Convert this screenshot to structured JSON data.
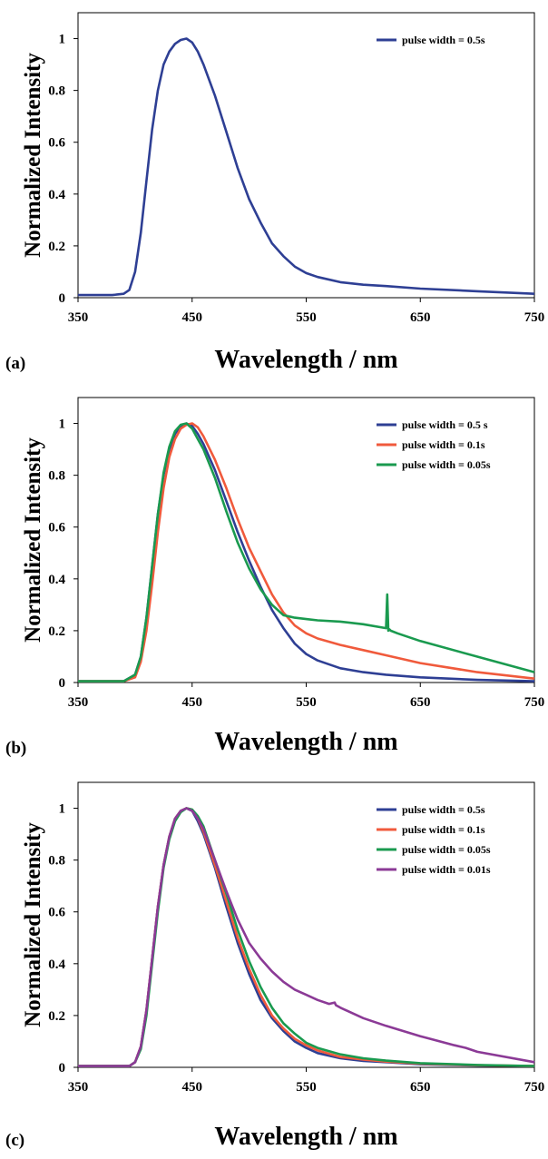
{
  "chart_data": [
    {
      "type": "line",
      "panel_label": "(a)",
      "xlabel": "Wavelength / nm",
      "ylabel": "Normalized Intensity",
      "xlim": [
        350,
        750
      ],
      "ylim": [
        0,
        1.1
      ],
      "x_ticks": [
        350,
        450,
        550,
        650,
        750
      ],
      "y_ticks": [
        0,
        0.2,
        0.4,
        0.6,
        0.8,
        1
      ],
      "legend_position": "top-right",
      "series": [
        {
          "name": "pulse width = 0.5s",
          "color": "#2e3f94",
          "x": [
            350,
            380,
            390,
            395,
            400,
            405,
            410,
            415,
            420,
            425,
            430,
            435,
            440,
            445,
            450,
            455,
            460,
            470,
            480,
            490,
            500,
            510,
            520,
            530,
            540,
            550,
            560,
            580,
            600,
            620,
            650,
            700,
            750
          ],
          "y": [
            0.01,
            0.01,
            0.015,
            0.03,
            0.1,
            0.25,
            0.45,
            0.65,
            0.8,
            0.9,
            0.95,
            0.98,
            0.995,
            1.0,
            0.985,
            0.95,
            0.9,
            0.78,
            0.64,
            0.5,
            0.38,
            0.29,
            0.21,
            0.16,
            0.12,
            0.095,
            0.08,
            0.06,
            0.05,
            0.045,
            0.035,
            0.025,
            0.015
          ]
        }
      ]
    },
    {
      "type": "line",
      "panel_label": "(b)",
      "xlabel": "Wavelength / nm",
      "ylabel": "Normalized Intensity",
      "xlim": [
        350,
        750
      ],
      "ylim": [
        0,
        1.1
      ],
      "x_ticks": [
        350,
        450,
        550,
        650,
        750
      ],
      "y_ticks": [
        0,
        0.2,
        0.4,
        0.6,
        0.8,
        1
      ],
      "legend_position": "top-right",
      "series": [
        {
          "name": "pulse width = 0.5 s",
          "color": "#2e3f94",
          "x": [
            350,
            390,
            400,
            405,
            410,
            415,
            420,
            425,
            430,
            435,
            440,
            445,
            450,
            455,
            460,
            470,
            480,
            490,
            500,
            510,
            520,
            530,
            540,
            550,
            560,
            580,
            600,
            620,
            650,
            700,
            750
          ],
          "y": [
            0.005,
            0.005,
            0.03,
            0.1,
            0.25,
            0.45,
            0.65,
            0.8,
            0.9,
            0.96,
            0.99,
            1.0,
            0.99,
            0.96,
            0.92,
            0.82,
            0.7,
            0.58,
            0.47,
            0.37,
            0.28,
            0.21,
            0.15,
            0.11,
            0.085,
            0.055,
            0.04,
            0.03,
            0.02,
            0.01,
            0.005
          ]
        },
        {
          "name": "pulse width = 0.1s",
          "color": "#f05a3c",
          "x": [
            350,
            390,
            400,
            405,
            410,
            415,
            420,
            425,
            430,
            435,
            440,
            445,
            450,
            455,
            460,
            470,
            480,
            490,
            500,
            510,
            520,
            530,
            540,
            550,
            560,
            580,
            600,
            620,
            650,
            700,
            750
          ],
          "y": [
            0.005,
            0.005,
            0.02,
            0.08,
            0.2,
            0.38,
            0.58,
            0.75,
            0.87,
            0.94,
            0.98,
            0.995,
            1.0,
            0.985,
            0.95,
            0.86,
            0.75,
            0.63,
            0.52,
            0.43,
            0.34,
            0.27,
            0.22,
            0.19,
            0.17,
            0.145,
            0.125,
            0.105,
            0.075,
            0.04,
            0.015
          ]
        },
        {
          "name": "pulse width = 0.05s",
          "color": "#1a9a4f",
          "x": [
            350,
            390,
            400,
            405,
            410,
            415,
            420,
            425,
            430,
            435,
            440,
            445,
            450,
            455,
            460,
            470,
            480,
            490,
            500,
            510,
            520,
            530,
            540,
            550,
            560,
            580,
            600,
            620,
            621,
            622,
            623,
            624,
            630,
            650,
            700,
            750
          ],
          "y": [
            0.005,
            0.005,
            0.03,
            0.1,
            0.25,
            0.45,
            0.65,
            0.81,
            0.91,
            0.97,
            0.995,
            1.0,
            0.98,
            0.94,
            0.9,
            0.79,
            0.66,
            0.54,
            0.44,
            0.36,
            0.3,
            0.26,
            0.25,
            0.245,
            0.24,
            0.235,
            0.225,
            0.21,
            0.34,
            0.2,
            0.205,
            0.2,
            0.19,
            0.16,
            0.1,
            0.04
          ]
        }
      ]
    },
    {
      "type": "line",
      "panel_label": "(c)",
      "xlabel": "Wavelength / nm",
      "ylabel": "Normalized Intensity",
      "xlim": [
        350,
        750
      ],
      "ylim": [
        0,
        1.1
      ],
      "x_ticks": [
        350,
        450,
        550,
        650,
        750
      ],
      "y_ticks": [
        0,
        0.2,
        0.4,
        0.6,
        0.8,
        1
      ],
      "legend_position": "top-right",
      "series": [
        {
          "name": "pulse width = 0.5s",
          "color": "#2e3f94",
          "x": [
            350,
            395,
            400,
            405,
            410,
            415,
            420,
            425,
            430,
            435,
            440,
            445,
            450,
            455,
            460,
            470,
            480,
            490,
            500,
            510,
            520,
            530,
            540,
            550,
            560,
            580,
            600,
            620,
            650,
            700,
            750
          ],
          "y": [
            0.005,
            0.005,
            0.02,
            0.08,
            0.22,
            0.42,
            0.62,
            0.78,
            0.89,
            0.96,
            0.99,
            1.0,
            0.99,
            0.95,
            0.9,
            0.77,
            0.62,
            0.48,
            0.36,
            0.26,
            0.19,
            0.14,
            0.1,
            0.075,
            0.055,
            0.035,
            0.025,
            0.02,
            0.012,
            0.007,
            0.005
          ]
        },
        {
          "name": "pulse width = 0.1s",
          "color": "#f05a3c",
          "x": [
            350,
            395,
            400,
            405,
            410,
            415,
            420,
            425,
            430,
            435,
            440,
            445,
            450,
            455,
            460,
            470,
            480,
            490,
            500,
            510,
            520,
            530,
            540,
            550,
            560,
            580,
            600,
            620,
            650,
            700,
            750
          ],
          "y": [
            0.005,
            0.005,
            0.02,
            0.08,
            0.22,
            0.42,
            0.62,
            0.78,
            0.89,
            0.96,
            0.99,
            1.0,
            0.995,
            0.96,
            0.91,
            0.78,
            0.64,
            0.5,
            0.38,
            0.28,
            0.2,
            0.15,
            0.11,
            0.085,
            0.065,
            0.04,
            0.03,
            0.022,
            0.014,
            0.008,
            0.005
          ]
        },
        {
          "name": "pulse width = 0.05s",
          "color": "#1a9a4f",
          "x": [
            350,
            395,
            400,
            405,
            410,
            415,
            420,
            425,
            430,
            435,
            440,
            445,
            450,
            455,
            460,
            470,
            480,
            490,
            500,
            510,
            520,
            530,
            540,
            550,
            560,
            580,
            600,
            620,
            650,
            700,
            750
          ],
          "y": [
            0.005,
            0.005,
            0.02,
            0.07,
            0.2,
            0.4,
            0.6,
            0.77,
            0.88,
            0.95,
            0.985,
            1.0,
            0.995,
            0.97,
            0.93,
            0.8,
            0.67,
            0.53,
            0.41,
            0.31,
            0.23,
            0.17,
            0.13,
            0.095,
            0.075,
            0.05,
            0.035,
            0.026,
            0.016,
            0.009,
            0.005
          ]
        },
        {
          "name": "pulse width = 0.01s",
          "color": "#8b3a96",
          "x": [
            350,
            395,
            400,
            405,
            410,
            415,
            420,
            425,
            430,
            435,
            440,
            445,
            450,
            455,
            460,
            470,
            480,
            490,
            500,
            510,
            520,
            530,
            540,
            550,
            560,
            570,
            575,
            576,
            580,
            600,
            620,
            650,
            680,
            690,
            700,
            750
          ],
          "y": [
            0.005,
            0.005,
            0.02,
            0.08,
            0.22,
            0.42,
            0.62,
            0.78,
            0.89,
            0.96,
            0.99,
            1.0,
            0.99,
            0.96,
            0.92,
            0.8,
            0.68,
            0.57,
            0.48,
            0.42,
            0.37,
            0.33,
            0.3,
            0.28,
            0.26,
            0.245,
            0.25,
            0.24,
            0.23,
            0.19,
            0.16,
            0.12,
            0.085,
            0.075,
            0.06,
            0.02
          ]
        }
      ]
    }
  ]
}
